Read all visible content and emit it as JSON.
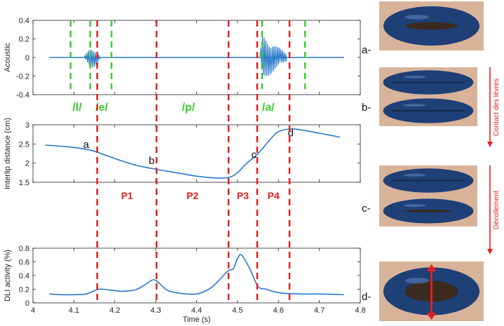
{
  "chart_data": [
    {
      "id": "acoustic",
      "type": "line",
      "ylabel": "Acoustic",
      "xlim": [
        4.0,
        4.8
      ],
      "ylim": [
        -0.4,
        0.4
      ],
      "yticks": [
        "0.4",
        "0.2",
        "0",
        "-0.2",
        "-0.4"
      ],
      "series": [
        {
          "values_note_x": [
            4.1,
            4.15,
            4.55,
            4.62
          ],
          "bursts": [
            {
              "x_start": 4.125,
              "x_end": 4.165,
              "amplitude": 0.11
            },
            {
              "x_start": 4.555,
              "x_end": 4.62,
              "amplitude": 0.27
            }
          ]
        }
      ],
      "segment_boundaries_x": [
        4.092,
        4.14,
        4.192,
        4.56,
        4.665
      ],
      "phoneme_labels": [
        "/l/",
        "/e/",
        "/p/",
        "/a/"
      ],
      "phoneme_x": [
        4.108,
        4.168,
        4.38,
        4.575
      ]
    },
    {
      "id": "interlip",
      "type": "line",
      "ylabel": "Interlip distance (cm)",
      "xlim": [
        4.0,
        4.8
      ],
      "ylim": [
        1.5,
        3.0
      ],
      "yticks": [
        "3",
        "2.5",
        "2",
        "1.5"
      ],
      "x": [
        4.03,
        4.08,
        4.12,
        4.15,
        4.2,
        4.25,
        4.3,
        4.35,
        4.4,
        4.45,
        4.48,
        4.5,
        4.52,
        4.55,
        4.58,
        4.6,
        4.63,
        4.66,
        4.7,
        4.75
      ],
      "y": [
        2.47,
        2.43,
        2.38,
        2.31,
        2.12,
        1.95,
        1.84,
        1.75,
        1.66,
        1.61,
        1.63,
        1.75,
        1.97,
        2.25,
        2.62,
        2.82,
        2.89,
        2.86,
        2.78,
        2.68
      ],
      "point_labels": [
        {
          "text": "a",
          "x": 4.13,
          "y": 2.4
        },
        {
          "text": "b",
          "x": 4.29,
          "y": 1.98
        },
        {
          "text": "c",
          "x": 4.54,
          "y": 2.13
        },
        {
          "text": "d",
          "x": 4.63,
          "y": 2.7
        }
      ]
    },
    {
      "id": "dli",
      "type": "line",
      "ylabel": "DLI activity (%)",
      "xlabel": "Time (s)",
      "xlim": [
        4.0,
        4.8
      ],
      "ylim": [
        0,
        0.8
      ],
      "yticks": [
        "0.8",
        "0.6",
        "0.4",
        "0.2",
        "0"
      ],
      "xticks": [
        "4",
        "4.1",
        "4.2",
        "4.3",
        "4.4",
        "4.5",
        "4.6",
        "4.7",
        "4.8"
      ],
      "x": [
        4.04,
        4.07,
        4.1,
        4.13,
        4.155,
        4.17,
        4.2,
        4.22,
        4.25,
        4.27,
        4.29,
        4.3,
        4.31,
        4.33,
        4.36,
        4.4,
        4.43,
        4.45,
        4.47,
        4.48,
        4.49,
        4.5,
        4.51,
        4.53,
        4.55,
        4.57,
        4.6,
        4.65,
        4.7,
        4.76
      ],
      "y": [
        0.13,
        0.12,
        0.12,
        0.13,
        0.19,
        0.2,
        0.18,
        0.17,
        0.19,
        0.25,
        0.33,
        0.33,
        0.28,
        0.18,
        0.14,
        0.13,
        0.2,
        0.3,
        0.43,
        0.48,
        0.5,
        0.65,
        0.7,
        0.5,
        0.24,
        0.2,
        0.15,
        0.13,
        0.13,
        0.12
      ]
    }
  ],
  "red_lines_x": [
    4.157,
    4.302,
    4.478,
    4.548,
    4.627
  ],
  "phases": [
    {
      "label": "P1",
      "x": 4.23
    },
    {
      "label": "P2",
      "x": 4.39
    },
    {
      "label": "P3",
      "x": 4.513
    },
    {
      "label": "P4",
      "x": 4.588
    }
  ],
  "photos": {
    "labels": [
      "a-",
      "b-",
      "c-",
      "d-"
    ],
    "arrow_labels": [
      "Contact des lèvres",
      "Décollement"
    ]
  },
  "colors": {
    "signal": "#2878c8",
    "boundary_green": "#3ccc2a",
    "phase_red": "#e02020",
    "lip_blue": "#1f3f77"
  }
}
